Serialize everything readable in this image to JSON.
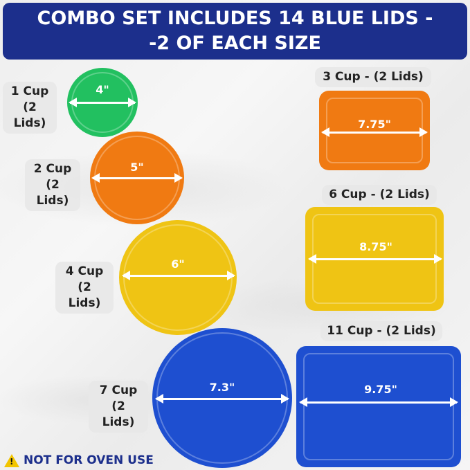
{
  "banner": {
    "line1": "COMBO SET INCLUDES 14 BLUE LIDS -",
    "line2": "-2 OF EACH SIZE"
  },
  "colors": {
    "banner": "#1c2f8c",
    "green": "#22c060",
    "orange": "#f07a12",
    "yellow": "#efc414",
    "blue": "#1e4fd0"
  },
  "lids": {
    "cup1": {
      "cup": "1 Cup",
      "count": "(2 Lids)",
      "size": "4\"",
      "color": "#22c060"
    },
    "cup2": {
      "cup": "2 Cup",
      "count": "(2 Lids)",
      "size": "5\"",
      "color": "#f07a12"
    },
    "cup4": {
      "cup": "4 Cup",
      "count": "(2 Lids)",
      "size": "6\"",
      "color": "#efc414"
    },
    "cup7": {
      "cup": "7 Cup",
      "count": "(2 Lids)",
      "size": "7.3\"",
      "color": "#1e4fd0"
    },
    "cup3": {
      "label": "3 Cup - (2 Lids)",
      "size": "7.75\"",
      "color": "#f07a12"
    },
    "cup6": {
      "label": "6 Cup - (2 Lids)",
      "size": "8.75\"",
      "color": "#efc414"
    },
    "cup11": {
      "label": "11 Cup - (2 Lids)",
      "size": "9.75\"",
      "color": "#1e4fd0"
    }
  },
  "warning": {
    "icon": "warning-triangle-icon",
    "text": "NOT FOR OVEN USE"
  }
}
